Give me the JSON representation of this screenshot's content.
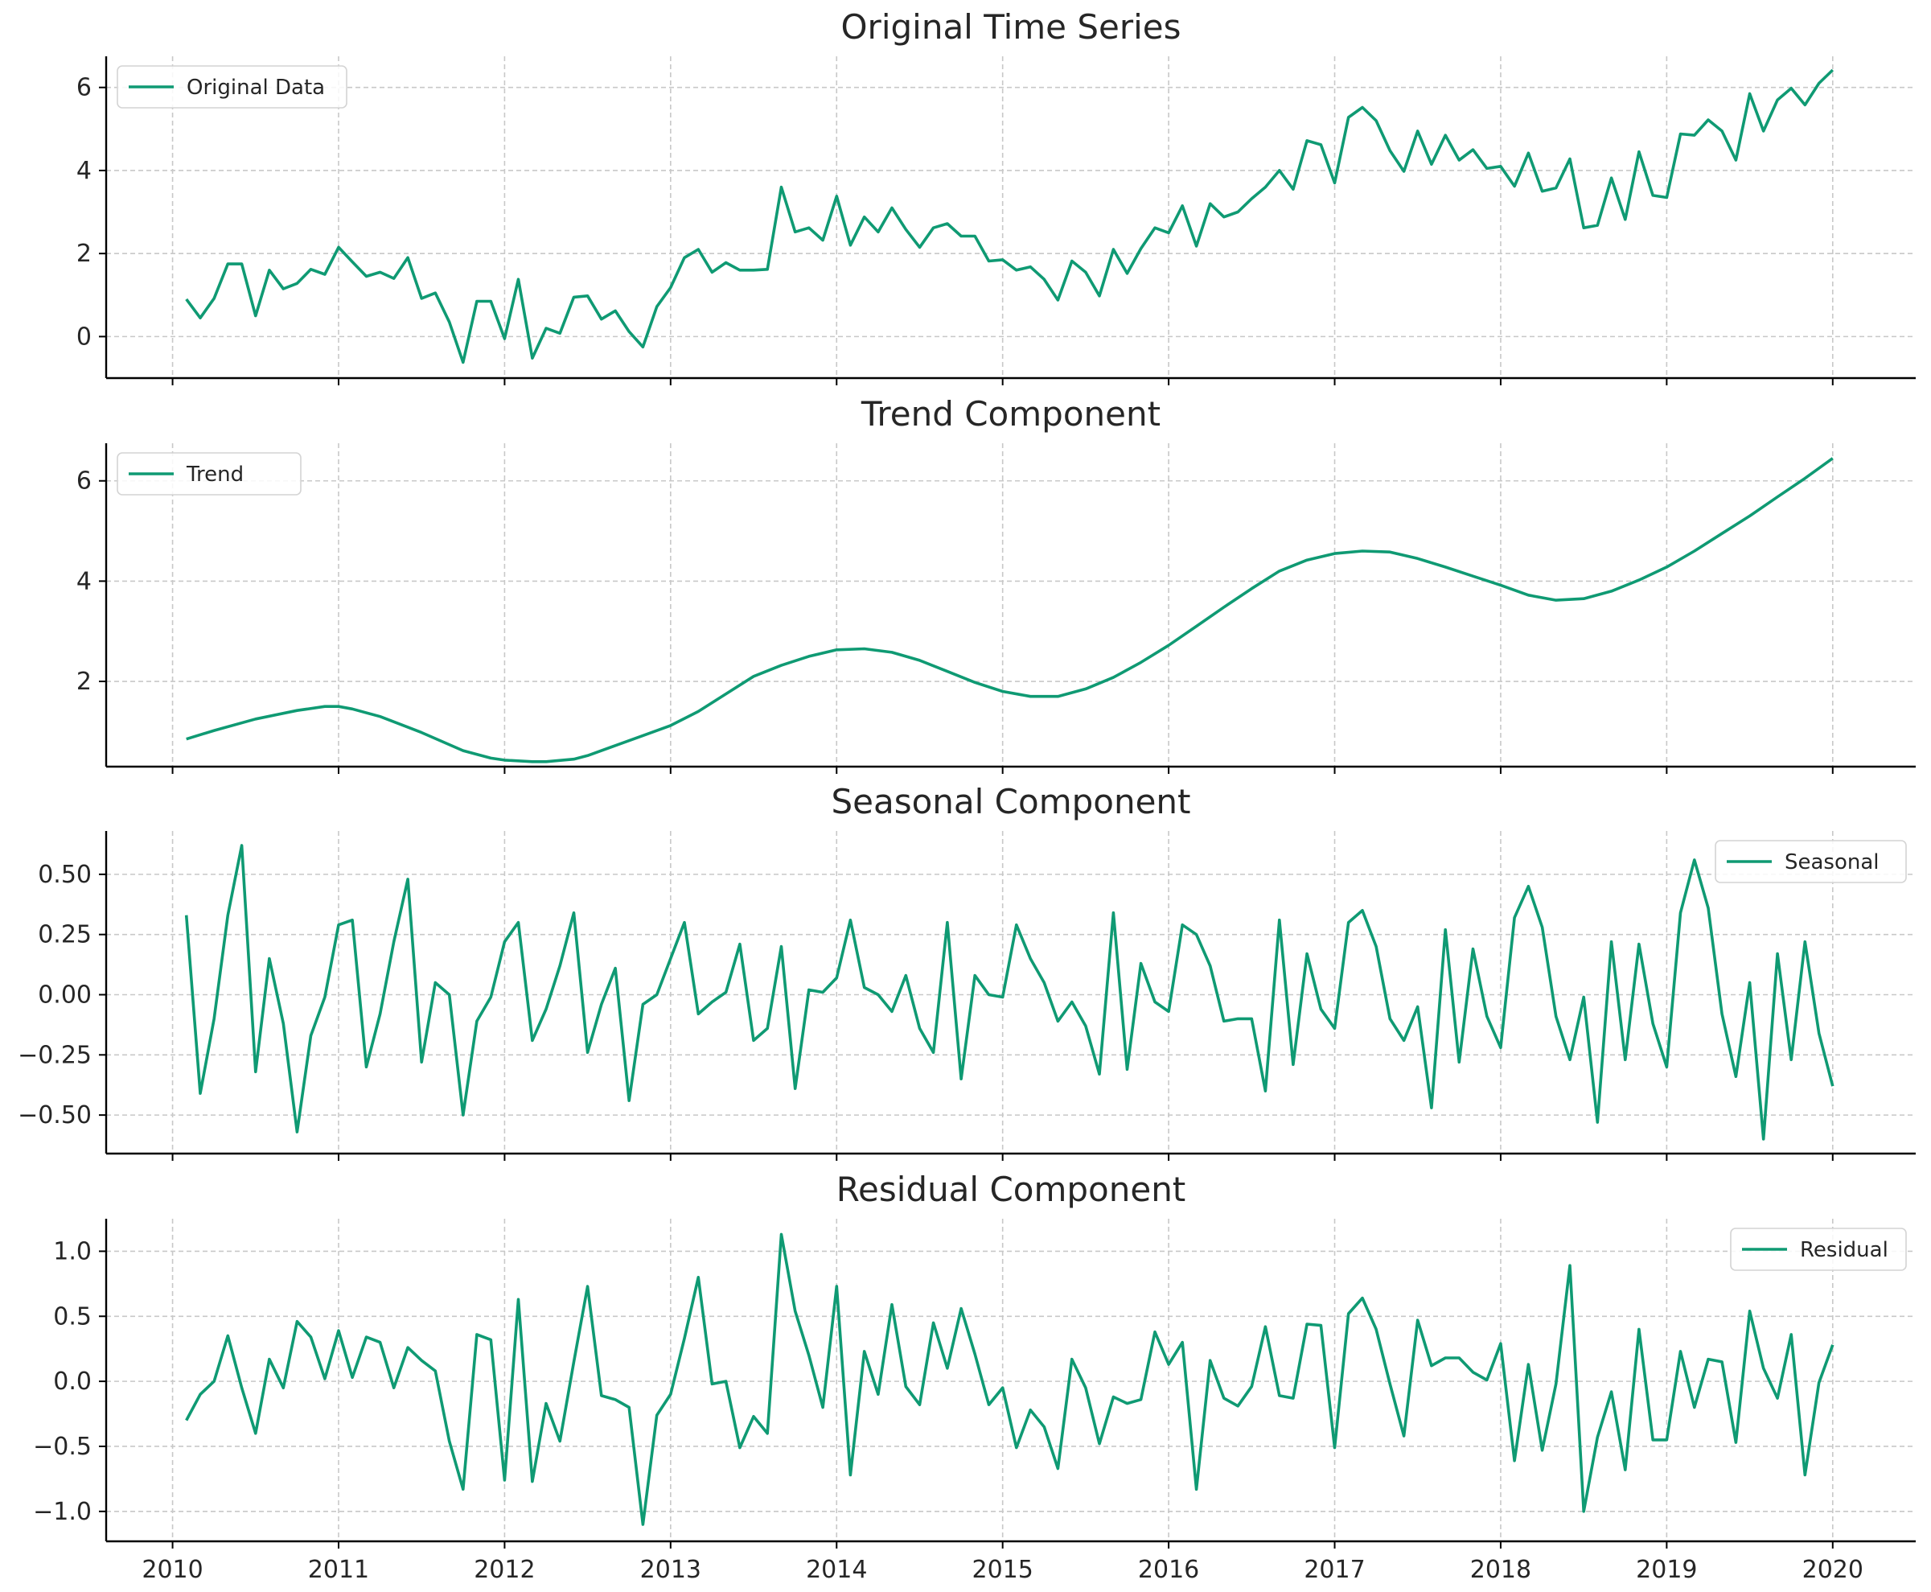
{
  "chart_data": [
    {
      "type": "line",
      "title": "Original Time Series",
      "series": [
        {
          "name": "Original Data",
          "x": [
            2010.083,
            2010.167,
            2010.25,
            2010.333,
            2010.417,
            2010.5,
            2010.583,
            2010.667,
            2010.75,
            2010.833,
            2010.917,
            2011.0,
            2011.083,
            2011.167,
            2011.25,
            2011.333,
            2011.417,
            2011.5,
            2011.583,
            2011.667,
            2011.75,
            2011.833,
            2011.917,
            2012.0,
            2012.083,
            2012.167,
            2012.25,
            2012.333,
            2012.417,
            2012.5,
            2012.583,
            2012.667,
            2012.75,
            2012.833,
            2012.917,
            2013.0,
            2013.083,
            2013.167,
            2013.25,
            2013.333,
            2013.417,
            2013.5,
            2013.583,
            2013.667,
            2013.75,
            2013.833,
            2013.917,
            2014.0,
            2014.083,
            2014.167,
            2014.25,
            2014.333,
            2014.417,
            2014.5,
            2014.583,
            2014.667,
            2014.75,
            2014.833,
            2014.917,
            2015.0,
            2015.083,
            2015.167,
            2015.25,
            2015.333,
            2015.417,
            2015.5,
            2015.583,
            2015.667,
            2015.75,
            2015.833,
            2015.917,
            2016.0,
            2016.083,
            2016.167,
            2016.25,
            2016.333,
            2016.417,
            2016.5,
            2016.583,
            2016.667,
            2016.75,
            2016.833,
            2016.917,
            2017.0,
            2017.083,
            2017.167,
            2017.25,
            2017.333,
            2017.417,
            2017.5,
            2017.583,
            2017.667,
            2017.75,
            2017.833,
            2017.917,
            2018.0,
            2018.083,
            2018.167,
            2018.25,
            2018.333,
            2018.417,
            2018.5,
            2018.583,
            2018.667,
            2018.75,
            2018.833,
            2018.917,
            2019.0,
            2019.083,
            2019.167,
            2019.25,
            2019.333,
            2019.417,
            2019.5,
            2019.583,
            2019.667,
            2019.75,
            2019.833,
            2019.917,
            2020.0
          ],
          "values": [
            0.9,
            0.45,
            0.92,
            1.75,
            1.75,
            0.5,
            1.6,
            1.15,
            1.28,
            1.62,
            1.5,
            2.15,
            1.8,
            1.45,
            1.55,
            1.4,
            1.9,
            0.92,
            1.05,
            0.35,
            -0.62,
            0.85,
            0.85,
            -0.05,
            1.38,
            -0.52,
            0.2,
            0.08,
            0.95,
            0.98,
            0.42,
            0.62,
            0.12,
            -0.25,
            0.72,
            1.18,
            1.9,
            2.1,
            1.55,
            1.78,
            1.6,
            1.6,
            1.62,
            3.6,
            2.52,
            2.62,
            2.32,
            3.38,
            2.2,
            2.88,
            2.52,
            3.1,
            2.58,
            2.15,
            2.62,
            2.72,
            2.42,
            2.42,
            1.82,
            1.85,
            1.6,
            1.68,
            1.38,
            0.88,
            1.82,
            1.55,
            0.98,
            2.1,
            1.52,
            2.12,
            2.62,
            2.5,
            3.15,
            2.18,
            3.2,
            2.88,
            3.0,
            3.32,
            3.6,
            4.0,
            3.55,
            4.72,
            4.62,
            3.7,
            5.28,
            5.52,
            5.2,
            4.48,
            3.98,
            4.95,
            4.15,
            4.85,
            4.25,
            4.5,
            4.05,
            4.1,
            3.62,
            4.42,
            3.5,
            3.58,
            4.28,
            2.62,
            2.68,
            3.82,
            2.82,
            4.45,
            3.4,
            3.35,
            4.88,
            4.85,
            5.22,
            4.95,
            4.25,
            5.85,
            4.95,
            5.7,
            5.98,
            5.58,
            6.1,
            6.42
          ]
        }
      ],
      "ylim": [
        -1.0,
        6.75
      ],
      "yticks": [
        "0",
        "2",
        "4",
        "6"
      ],
      "ytick_values": [
        0,
        2,
        4,
        6
      ],
      "legend": "top-left",
      "grid": true
    },
    {
      "type": "line",
      "title": "Trend Component",
      "series": [
        {
          "name": "Trend",
          "x": [
            2010.083,
            2010.25,
            2010.5,
            2010.75,
            2010.917,
            2011.0,
            2011.083,
            2011.25,
            2011.5,
            2011.75,
            2011.917,
            2012.0,
            2012.167,
            2012.25,
            2012.417,
            2012.5,
            2012.667,
            2012.833,
            2013.0,
            2013.167,
            2013.333,
            2013.5,
            2013.667,
            2013.833,
            2014.0,
            2014.167,
            2014.333,
            2014.5,
            2014.667,
            2014.833,
            2015.0,
            2015.167,
            2015.333,
            2015.5,
            2015.667,
            2015.833,
            2016.0,
            2016.167,
            2016.333,
            2016.5,
            2016.667,
            2016.833,
            2017.0,
            2017.167,
            2017.333,
            2017.5,
            2017.667,
            2017.833,
            2018.0,
            2018.167,
            2018.333,
            2018.5,
            2018.667,
            2018.833,
            2019.0,
            2019.167,
            2019.333,
            2019.5,
            2019.667,
            2019.833,
            2020.0
          ],
          "values": [
            0.85,
            1.02,
            1.25,
            1.42,
            1.5,
            1.5,
            1.45,
            1.3,
            0.98,
            0.62,
            0.47,
            0.43,
            0.4,
            0.4,
            0.45,
            0.52,
            0.72,
            0.92,
            1.12,
            1.4,
            1.75,
            2.1,
            2.32,
            2.5,
            2.63,
            2.65,
            2.58,
            2.42,
            2.2,
            1.98,
            1.8,
            1.7,
            1.7,
            1.85,
            2.08,
            2.38,
            2.72,
            3.1,
            3.48,
            3.85,
            4.2,
            4.42,
            4.55,
            4.6,
            4.58,
            4.45,
            4.28,
            4.1,
            3.92,
            3.72,
            3.62,
            3.65,
            3.8,
            4.02,
            4.28,
            4.6,
            4.95,
            5.3,
            5.68,
            6.05,
            6.45
          ]
        }
      ],
      "ylim": [
        0.3,
        6.75
      ],
      "yticks": [
        "2",
        "4",
        "6"
      ],
      "ytick_values": [
        2,
        4,
        6
      ],
      "legend": "top-left",
      "grid": true
    },
    {
      "type": "line",
      "title": "Seasonal Component",
      "series": [
        {
          "name": "Seasonal",
          "x": [
            2010.083,
            2010.167,
            2010.25,
            2010.333,
            2010.417,
            2010.5,
            2010.583,
            2010.667,
            2010.75,
            2010.833,
            2010.917,
            2011.0,
            2011.083,
            2011.167,
            2011.25,
            2011.333,
            2011.417,
            2011.5,
            2011.583,
            2011.667,
            2011.75,
            2011.833,
            2011.917,
            2012.0,
            2012.083,
            2012.167,
            2012.25,
            2012.333,
            2012.417,
            2012.5,
            2012.583,
            2012.667,
            2012.75,
            2012.833,
            2012.917,
            2013.0,
            2013.083,
            2013.167,
            2013.25,
            2013.333,
            2013.417,
            2013.5,
            2013.583,
            2013.667,
            2013.75,
            2013.833,
            2013.917,
            2014.0,
            2014.083,
            2014.167,
            2014.25,
            2014.333,
            2014.417,
            2014.5,
            2014.583,
            2014.667,
            2014.75,
            2014.833,
            2014.917,
            2015.0,
            2015.083,
            2015.167,
            2015.25,
            2015.333,
            2015.417,
            2015.5,
            2015.583,
            2015.667,
            2015.75,
            2015.833,
            2015.917,
            2016.0,
            2016.083,
            2016.167,
            2016.25,
            2016.333,
            2016.417,
            2016.5,
            2016.583,
            2016.667,
            2016.75,
            2016.833,
            2016.917,
            2017.0,
            2017.083,
            2017.167,
            2017.25,
            2017.333,
            2017.417,
            2017.5,
            2017.583,
            2017.667,
            2017.75,
            2017.833,
            2017.917,
            2018.0,
            2018.083,
            2018.167,
            2018.25,
            2018.333,
            2018.417,
            2018.5,
            2018.583,
            2018.667,
            2018.75,
            2018.833,
            2018.917,
            2019.0,
            2019.083,
            2019.167,
            2019.25,
            2019.333,
            2019.417,
            2019.5,
            2019.583,
            2019.667,
            2019.75,
            2019.833,
            2019.917,
            2020.0
          ],
          "values": [
            0.33,
            -0.41,
            -0.1,
            0.33,
            0.62,
            -0.32,
            0.15,
            -0.12,
            -0.57,
            -0.17,
            -0.01,
            0.29,
            0.31,
            -0.3,
            -0.08,
            0.22,
            0.48,
            -0.28,
            0.05,
            0.0,
            -0.5,
            -0.11,
            -0.01,
            0.22,
            0.3,
            -0.19,
            -0.06,
            0.12,
            0.34,
            -0.24,
            -0.04,
            0.11,
            -0.44,
            -0.04,
            0.0,
            0.15,
            0.3,
            -0.08,
            -0.03,
            0.01,
            0.21,
            -0.19,
            -0.14,
            0.2,
            -0.39,
            0.02,
            0.01,
            0.07,
            0.31,
            0.03,
            0.0,
            -0.07,
            0.08,
            -0.14,
            -0.24,
            0.3,
            -0.35,
            0.08,
            0.0,
            -0.01,
            0.29,
            0.15,
            0.05,
            -0.11,
            -0.03,
            -0.13,
            -0.33,
            0.34,
            -0.31,
            0.13,
            -0.03,
            -0.07,
            0.29,
            0.25,
            0.12,
            -0.11,
            -0.1,
            -0.1,
            -0.4,
            0.31,
            -0.29,
            0.17,
            -0.06,
            -0.14,
            0.3,
            0.35,
            0.2,
            -0.1,
            -0.19,
            -0.05,
            -0.47,
            0.27,
            -0.28,
            0.19,
            -0.09,
            -0.22,
            0.32,
            0.45,
            0.28,
            -0.09,
            -0.27,
            -0.01,
            -0.53,
            0.22,
            -0.27,
            0.21,
            -0.12,
            -0.3,
            0.34,
            0.56,
            0.36,
            -0.08,
            -0.34,
            0.05,
            -0.6,
            0.17,
            -0.27,
            0.22,
            -0.16,
            -0.38
          ]
        }
      ],
      "ylim": [
        -0.66,
        0.68
      ],
      "yticks": [
        "−0.50",
        "−0.25",
        "0.00",
        "0.25",
        "0.50"
      ],
      "ytick_values": [
        -0.5,
        -0.25,
        0,
        0.25,
        0.5
      ],
      "legend": "top-right",
      "grid": true
    },
    {
      "type": "line",
      "title": "Residual Component",
      "series": [
        {
          "name": "Residual",
          "x": [
            2010.083,
            2010.167,
            2010.25,
            2010.333,
            2010.417,
            2010.5,
            2010.583,
            2010.667,
            2010.75,
            2010.833,
            2010.917,
            2011.0,
            2011.083,
            2011.167,
            2011.25,
            2011.333,
            2011.417,
            2011.5,
            2011.583,
            2011.667,
            2011.75,
            2011.833,
            2011.917,
            2012.0,
            2012.083,
            2012.167,
            2012.25,
            2012.333,
            2012.417,
            2012.5,
            2012.583,
            2012.667,
            2012.75,
            2012.833,
            2012.917,
            2013.0,
            2013.083,
            2013.167,
            2013.25,
            2013.333,
            2013.417,
            2013.5,
            2013.583,
            2013.667,
            2013.75,
            2013.833,
            2013.917,
            2014.0,
            2014.083,
            2014.167,
            2014.25,
            2014.333,
            2014.417,
            2014.5,
            2014.583,
            2014.667,
            2014.75,
            2014.833,
            2014.917,
            2015.0,
            2015.083,
            2015.167,
            2015.25,
            2015.333,
            2015.417,
            2015.5,
            2015.583,
            2015.667,
            2015.75,
            2015.833,
            2015.917,
            2016.0,
            2016.083,
            2016.167,
            2016.25,
            2016.333,
            2016.417,
            2016.5,
            2016.583,
            2016.667,
            2016.75,
            2016.833,
            2016.917,
            2017.0,
            2017.083,
            2017.167,
            2017.25,
            2017.333,
            2017.417,
            2017.5,
            2017.583,
            2017.667,
            2017.75,
            2017.833,
            2017.917,
            2018.0,
            2018.083,
            2018.167,
            2018.25,
            2018.333,
            2018.417,
            2018.5,
            2018.583,
            2018.667,
            2018.75,
            2018.833,
            2018.917,
            2019.0,
            2019.083,
            2019.167,
            2019.25,
            2019.333,
            2019.417,
            2019.5,
            2019.583,
            2019.667,
            2019.75,
            2019.833,
            2019.917,
            2020.0
          ],
          "values": [
            -0.3,
            -0.1,
            0.0,
            0.35,
            -0.05,
            -0.4,
            0.17,
            -0.05,
            0.46,
            0.34,
            0.02,
            0.39,
            0.03,
            0.34,
            0.3,
            -0.05,
            0.26,
            0.16,
            0.08,
            -0.46,
            -0.83,
            0.36,
            0.32,
            -0.76,
            0.63,
            -0.77,
            -0.17,
            -0.46,
            0.15,
            0.73,
            -0.11,
            -0.14,
            -0.2,
            -1.1,
            -0.26,
            -0.1,
            0.33,
            0.8,
            -0.02,
            0.0,
            -0.51,
            -0.27,
            -0.4,
            1.13,
            0.54,
            0.2,
            -0.2,
            0.73,
            -0.72,
            0.23,
            -0.1,
            0.59,
            -0.04,
            -0.18,
            0.45,
            0.1,
            0.56,
            0.21,
            -0.18,
            -0.05,
            -0.51,
            -0.22,
            -0.35,
            -0.67,
            0.17,
            -0.05,
            -0.48,
            -0.12,
            -0.17,
            -0.14,
            0.38,
            0.13,
            0.3,
            -0.83,
            0.16,
            -0.13,
            -0.19,
            -0.04,
            0.42,
            -0.11,
            -0.13,
            0.44,
            0.43,
            -0.51,
            0.52,
            0.64,
            0.4,
            -0.02,
            -0.42,
            0.47,
            0.12,
            0.18,
            0.18,
            0.07,
            0.01,
            0.29,
            -0.61,
            0.13,
            -0.53,
            -0.02,
            0.89,
            -1.0,
            -0.43,
            -0.08,
            -0.68,
            0.4,
            -0.45,
            -0.45,
            0.23,
            -0.2,
            0.17,
            0.15,
            -0.47,
            0.54,
            0.1,
            -0.13,
            0.36,
            -0.72,
            -0.01,
            0.28
          ]
        }
      ],
      "ylim": [
        -1.23,
        1.25
      ],
      "yticks": [
        "−1.0",
        "−0.5",
        "0.0",
        "0.5",
        "1.0"
      ],
      "ytick_values": [
        -1.0,
        -0.5,
        0.0,
        0.5,
        1.0
      ],
      "legend": "top-right",
      "grid": true
    }
  ],
  "x_axis": {
    "range": [
      2009.6,
      2020.5
    ],
    "ticks": [
      "2010",
      "2011",
      "2012",
      "2013",
      "2014",
      "2015",
      "2016",
      "2017",
      "2018",
      "2019",
      "2020"
    ],
    "tick_values": [
      2010,
      2011,
      2012,
      2013,
      2014,
      2015,
      2016,
      2017,
      2018,
      2019,
      2020
    ]
  },
  "colors": {
    "line": "#0f9a73",
    "grid": "#c8c8c8",
    "axis": "#000000",
    "text": "#262626"
  }
}
